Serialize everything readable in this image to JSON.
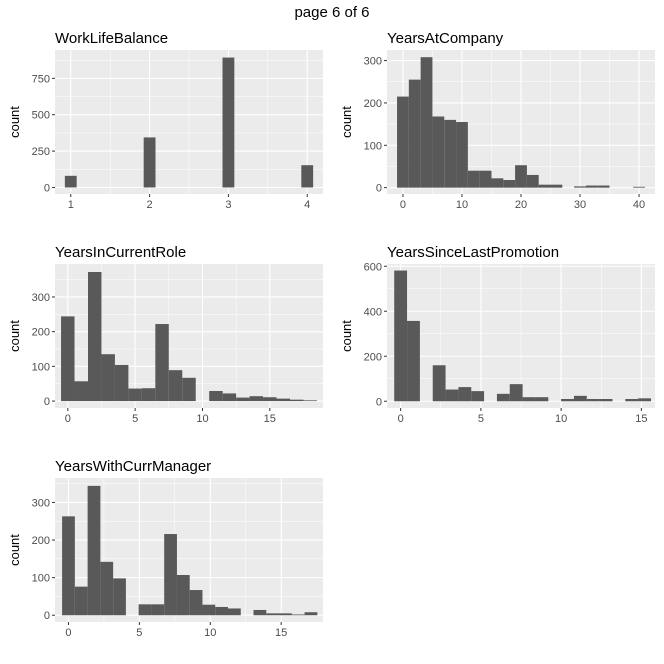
{
  "page": {
    "title": "page 6 of 6"
  },
  "colors": {
    "panel_bg": "#ebebeb",
    "grid_major": "#ffffff",
    "bar_fill": "#595959",
    "tick_text": "#4d4d4d"
  },
  "chart_data": [
    {
      "type": "bar",
      "title": "WorkLifeBalance",
      "ylabel": "count",
      "xlabel": "",
      "xlim": [
        0.8,
        4.2
      ],
      "ylim": [
        -45,
        945
      ],
      "xticks": [
        1,
        2,
        3,
        4
      ],
      "yticks": [
        0,
        250,
        500,
        750
      ],
      "bin_width": 0.15,
      "x": [
        1,
        2,
        3,
        4
      ],
      "values": [
        80,
        344,
        893,
        153
      ]
    },
    {
      "type": "bar",
      "title": "YearsAtCompany",
      "ylabel": "count",
      "xlabel": "",
      "xlim": [
        -2.7,
        42.7
      ],
      "ylim": [
        -15,
        325
      ],
      "xticks": [
        0,
        10,
        20,
        30,
        40
      ],
      "yticks": [
        0,
        100,
        200,
        300
      ],
      "bin_width": 2,
      "x": [
        0,
        2,
        4,
        6,
        8,
        10,
        12,
        14,
        16,
        18,
        20,
        22,
        24,
        26,
        28,
        30,
        32,
        34,
        36,
        38,
        40
      ],
      "values": [
        215,
        255,
        308,
        168,
        160,
        155,
        40,
        40,
        22,
        18,
        53,
        30,
        7,
        7,
        0,
        3,
        5,
        5,
        0,
        0,
        2
      ]
    },
    {
      "type": "bar",
      "title": "YearsInCurrentRole",
      "ylabel": "count",
      "xlabel": "",
      "xlim": [
        -0.95,
        18.95
      ],
      "ylim": [
        -20,
        395
      ],
      "xticks": [
        0,
        5,
        10,
        15
      ],
      "yticks": [
        0,
        100,
        200,
        300
      ],
      "bin_width": 1,
      "x": [
        0,
        1,
        2,
        3,
        4,
        5,
        6,
        7,
        8,
        9,
        10,
        11,
        12,
        13,
        14,
        15,
        16,
        17,
        18
      ],
      "values": [
        244,
        57,
        372,
        135,
        104,
        36,
        37,
        222,
        89,
        67,
        0,
        29,
        22,
        10,
        14,
        11,
        7,
        4,
        2
      ]
    },
    {
      "type": "bar",
      "title": "YearsSinceLastPromotion",
      "ylabel": "count",
      "xlabel": "",
      "xlim": [
        -0.85,
        15.85
      ],
      "ylim": [
        -30,
        610
      ],
      "xticks": [
        0,
        5,
        10,
        15
      ],
      "yticks": [
        0,
        200,
        400,
        600
      ],
      "bin_width": 0.8,
      "x": [
        0,
        0.8,
        1.6,
        2.4,
        3.2,
        4.0,
        4.8,
        5.6,
        6.4,
        7.2,
        8.0,
        8.8,
        9.6,
        10.4,
        11.2,
        12.0,
        12.8,
        13.6,
        14.4,
        15.2
      ],
      "values": [
        581,
        357,
        0,
        160,
        52,
        63,
        45,
        0,
        33,
        76,
        18,
        18,
        0,
        10,
        24,
        10,
        10,
        0,
        10,
        13
      ]
    },
    {
      "type": "bar",
      "title": "YearsWithCurrManager",
      "ylabel": "count",
      "xlabel": "",
      "xlim": [
        -0.95,
        17.95
      ],
      "ylim": [
        -18,
        365
      ],
      "xticks": [
        0,
        5,
        10,
        15
      ],
      "yticks": [
        0,
        100,
        200,
        300
      ],
      "bin_width": 0.9,
      "x": [
        0,
        0.9,
        1.8,
        2.7,
        3.6,
        4.5,
        5.4,
        6.3,
        7.2,
        8.1,
        9.0,
        9.9,
        10.8,
        11.7,
        12.6,
        13.5,
        14.4,
        15.3,
        16.2,
        17.1
      ],
      "values": [
        263,
        76,
        344,
        142,
        98,
        0,
        29,
        29,
        216,
        107,
        67,
        28,
        22,
        18,
        0,
        14,
        5,
        5,
        2,
        8
      ]
    }
  ]
}
